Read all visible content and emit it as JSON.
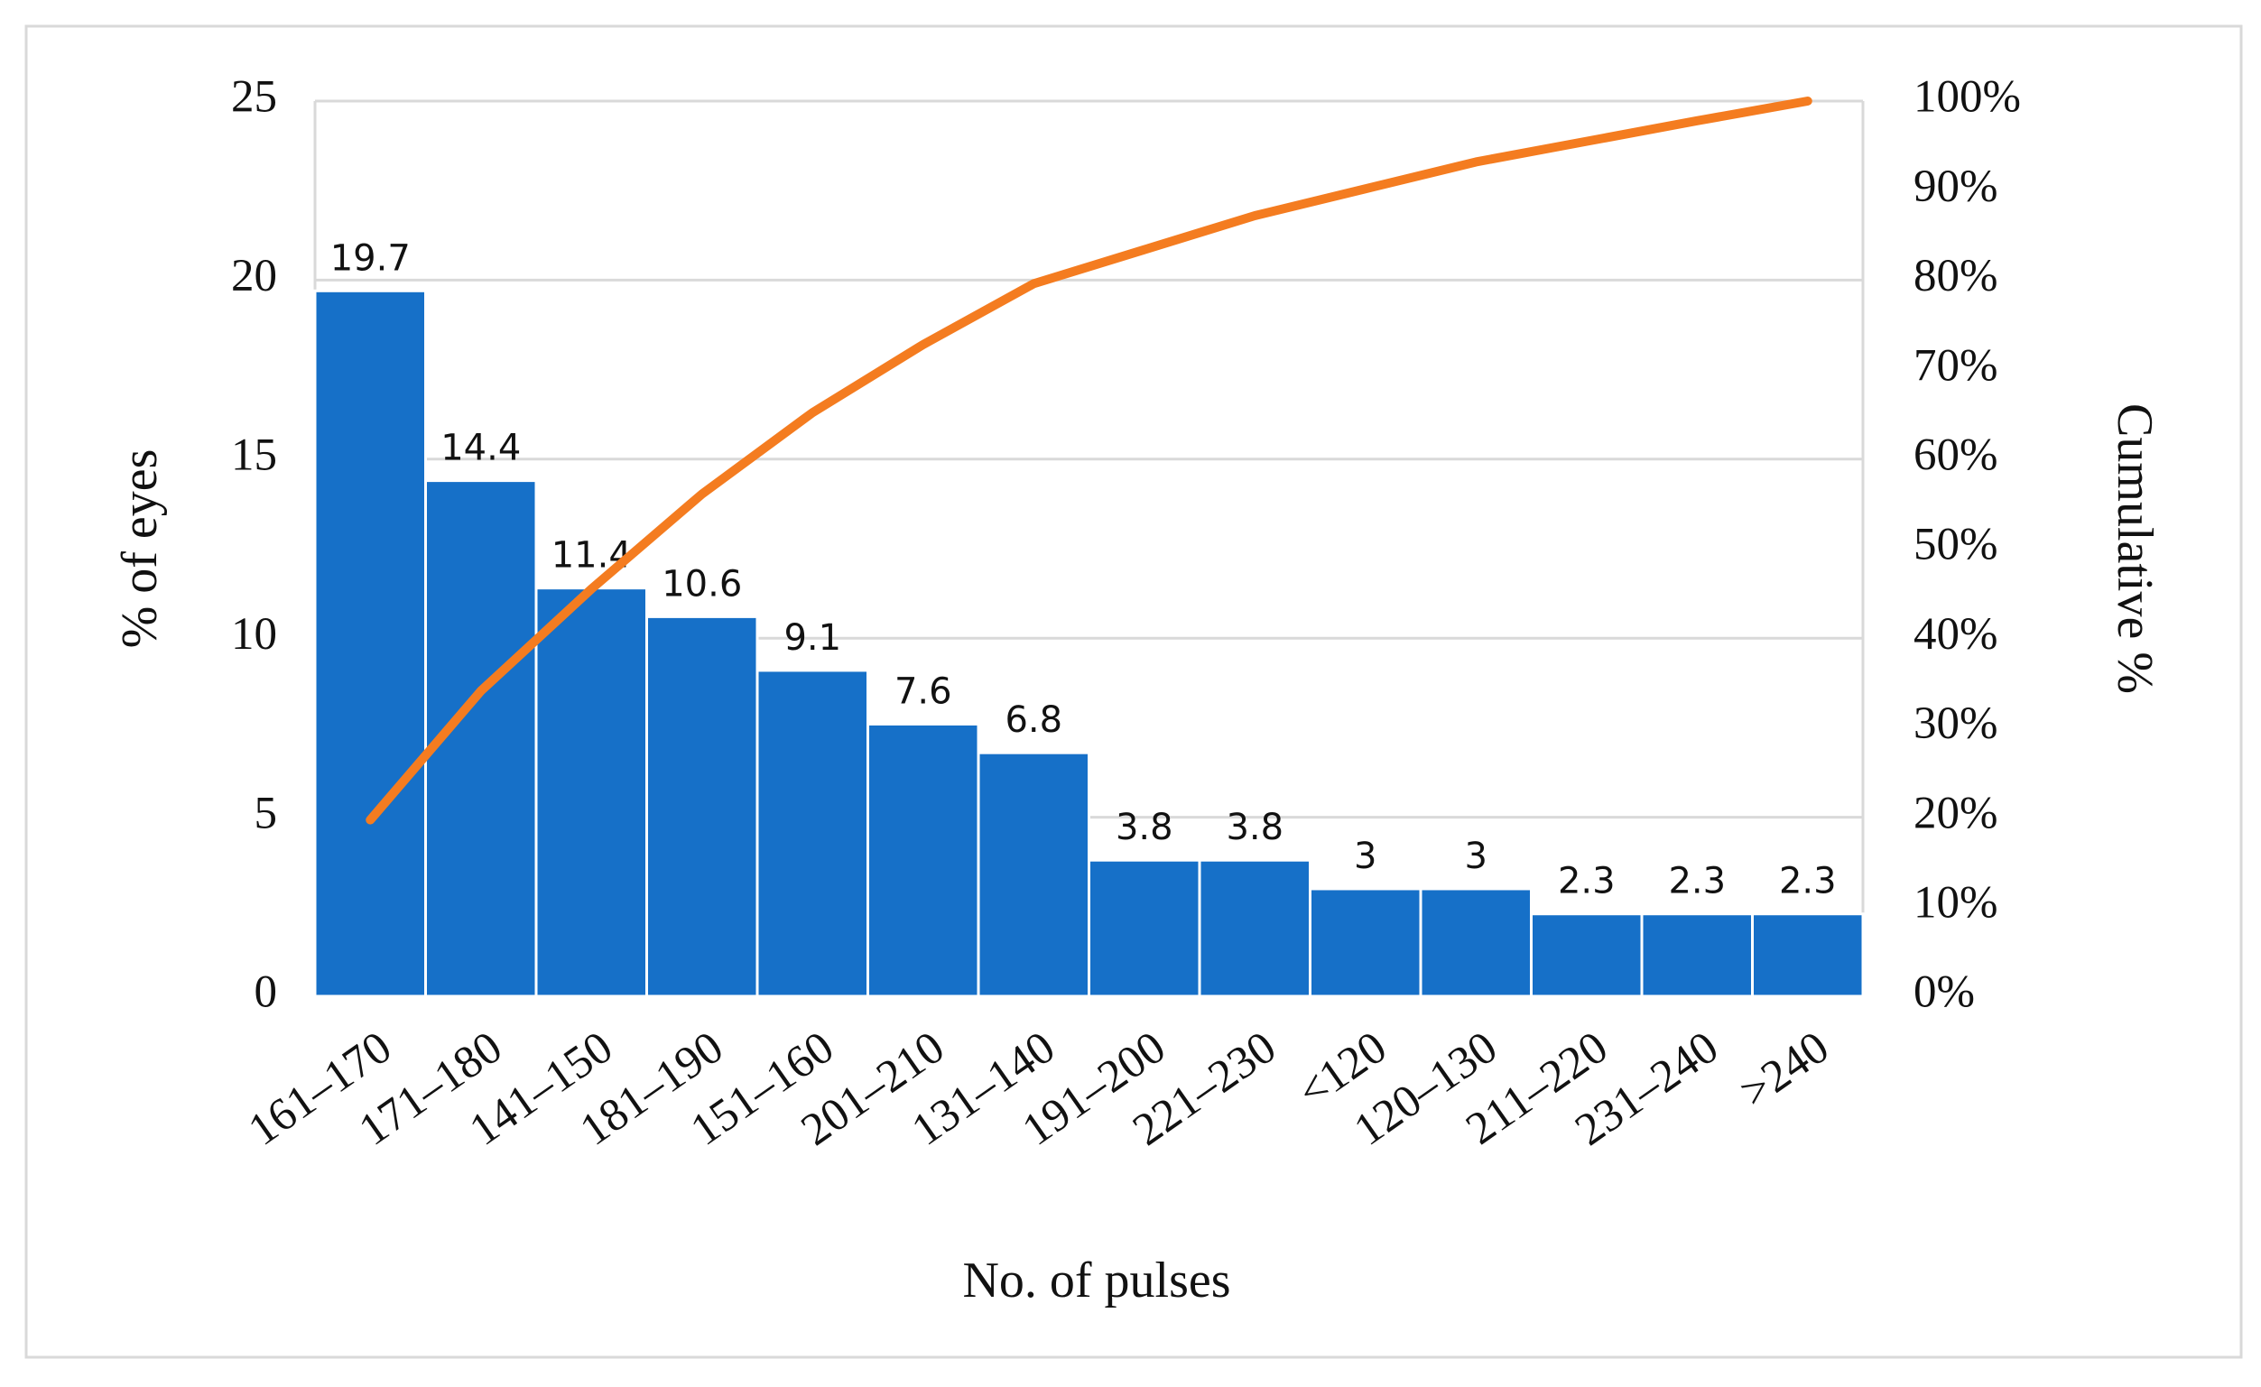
{
  "chart_data": {
    "type": "pareto",
    "x_label": "No. of pulses",
    "y_label": "% of eyes",
    "y2_label": "Cumulative %",
    "categories": [
      "161–170",
      "171–180",
      "141–150",
      "181–190",
      "151–160",
      "201–210",
      "131–140",
      "191–200",
      "221–230",
      "<120",
      "120–130",
      "211–220",
      "231–240",
      ">240"
    ],
    "series": [
      {
        "type": "bar",
        "color": "#1670c8",
        "values": [
          19.7,
          14.4,
          11.4,
          10.6,
          9.1,
          7.6,
          6.8,
          3.8,
          3.8,
          3,
          3,
          2.3,
          2.3,
          2.3
        ]
      },
      {
        "type": "line",
        "axis": "y2",
        "color": "#f47c20",
        "values": [
          19.7,
          34.1,
          45.5,
          56.1,
          65.2,
          72.8,
          79.6,
          83.4,
          87.2,
          90.2,
          93.2,
          95.5,
          97.8,
          100
        ]
      }
    ],
    "ylim": [
      0,
      25
    ],
    "yticks": [
      0,
      5,
      10,
      15,
      20,
      25
    ],
    "y2lim": [
      0,
      100
    ],
    "y2ticks": [
      {
        "value": 0,
        "label": "0%"
      },
      {
        "value": 10,
        "label": "10%"
      },
      {
        "value": 20,
        "label": "20%"
      },
      {
        "value": 30,
        "label": "30%"
      },
      {
        "value": 40,
        "label": "40%"
      },
      {
        "value": 50,
        "label": "50%"
      },
      {
        "value": 60,
        "label": "60%"
      },
      {
        "value": 70,
        "label": "70%"
      },
      {
        "value": 80,
        "label": "80%"
      },
      {
        "value": 90,
        "label": "90%"
      },
      {
        "value": 100,
        "label": "100%"
      }
    ],
    "grid": true
  }
}
